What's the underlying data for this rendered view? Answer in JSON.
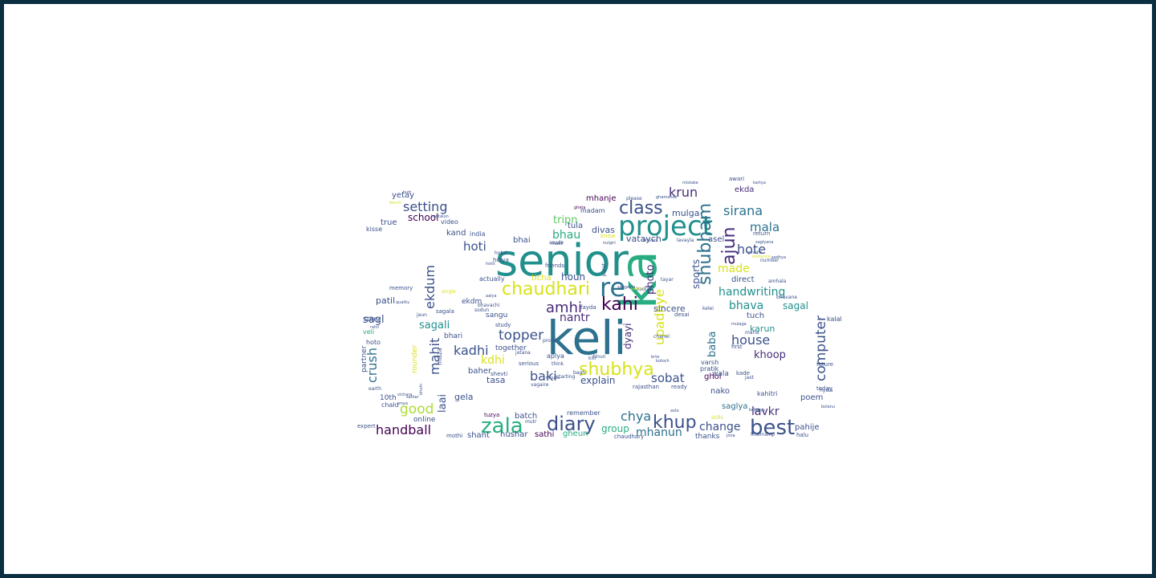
{
  "palette": [
    "#440154",
    "#472c7a",
    "#3b518b",
    "#2c718e",
    "#21908d",
    "#27ad81",
    "#5cc863",
    "#aadc32",
    "#d8e219"
  ],
  "word_cloud": {
    "words": [
      {
        "text": "senior",
        "weight": 1.0,
        "color": "#21908d"
      },
      {
        "text": "keli",
        "weight": 0.93,
        "color": "#2c718e"
      },
      {
        "text": "ka",
        "weight": 0.84,
        "color": "#27ad81"
      },
      {
        "text": "project",
        "weight": 0.55,
        "color": "#21908d"
      },
      {
        "text": "re",
        "weight": 0.46,
        "color": "#2c718e"
      },
      {
        "text": "zala",
        "weight": 0.35,
        "color": "#27ad81"
      },
      {
        "text": "chaudhari",
        "weight": 0.34,
        "color": "#d8e219"
      },
      {
        "text": "shubhya",
        "weight": 0.34,
        "color": "#d8e219"
      },
      {
        "text": "best",
        "weight": 0.34,
        "color": "#3b518b"
      },
      {
        "text": "kahi",
        "weight": 0.32,
        "color": "#440154"
      },
      {
        "text": "class",
        "weight": 0.31,
        "color": "#3b518b"
      },
      {
        "text": "diary",
        "weight": 0.31,
        "color": "#3b518b"
      },
      {
        "text": "shubham",
        "weight": 0.3,
        "color": "#2c718e"
      },
      {
        "text": "ajun",
        "weight": 0.29,
        "color": "#472c7a"
      },
      {
        "text": "khup",
        "weight": 0.29,
        "color": "#3b518b"
      },
      {
        "text": "handball",
        "weight": 0.26,
        "color": "#440154"
      },
      {
        "text": "setting",
        "weight": 0.25,
        "color": "#3b518b"
      },
      {
        "text": "amhi",
        "weight": 0.25,
        "color": "#472c7a"
      },
      {
        "text": "topper",
        "weight": 0.25,
        "color": "#3b518b"
      },
      {
        "text": "ekdum",
        "weight": 0.25,
        "color": "#3b518b"
      },
      {
        "text": "mahit",
        "weight": 0.24,
        "color": "#3b518b"
      },
      {
        "text": "crush",
        "weight": 0.24,
        "color": "#2c718e"
      },
      {
        "text": "computer",
        "weight": 0.24,
        "color": "#3b518b"
      },
      {
        "text": "hote",
        "weight": 0.24,
        "color": "#3b518b"
      },
      {
        "text": "upadhye",
        "weight": 0.23,
        "color": "#d8e219"
      },
      {
        "text": "house",
        "weight": 0.23,
        "color": "#3b518b"
      },
      {
        "text": "sirana",
        "weight": 0.23,
        "color": "#2c718e"
      },
      {
        "text": "chya",
        "weight": 0.23,
        "color": "#2c718e"
      },
      {
        "text": "good",
        "weight": 0.22,
        "color": "#aadc32"
      },
      {
        "text": "kadhi",
        "weight": 0.22,
        "color": "#3b518b"
      },
      {
        "text": "krun",
        "weight": 0.22,
        "color": "#472c7a"
      },
      {
        "text": "baki",
        "weight": 0.22,
        "color": "#3b518b"
      },
      {
        "text": "handwriting",
        "weight": 0.21,
        "color": "#21908d"
      },
      {
        "text": "hoti",
        "weight": 0.21,
        "color": "#3b518b"
      },
      {
        "text": "mala",
        "weight": 0.21,
        "color": "#2c718e"
      },
      {
        "text": "sobat",
        "weight": 0.21,
        "color": "#3b518b"
      },
      {
        "text": "bhava",
        "weight": 0.21,
        "color": "#21908d"
      },
      {
        "text": "mhanun",
        "weight": 0.21,
        "color": "#2c718e"
      },
      {
        "text": "change",
        "weight": 0.21,
        "color": "#3b518b"
      },
      {
        "text": "lavkr",
        "weight": 0.21,
        "color": "#472c7a"
      },
      {
        "text": "nantr",
        "weight": 0.2,
        "color": "#472c7a"
      },
      {
        "text": "made",
        "weight": 0.2,
        "color": "#d8e219"
      },
      {
        "text": "baba",
        "weight": 0.2,
        "color": "#2c718e"
      },
      {
        "text": "photo",
        "weight": 0.2,
        "color": "#472c7a"
      },
      {
        "text": "bhau",
        "weight": 0.19,
        "color": "#27ad81"
      },
      {
        "text": "kdhi",
        "weight": 0.19,
        "color": "#d8e219"
      },
      {
        "text": "khoop",
        "weight": 0.18,
        "color": "#472c7a"
      },
      {
        "text": "sagali",
        "weight": 0.18,
        "color": "#21908d"
      },
      {
        "text": "tripn",
        "weight": 0.18,
        "color": "#5cc863"
      },
      {
        "text": "sports",
        "weight": 0.18,
        "color": "#3b518b"
      },
      {
        "text": "laai",
        "weight": 0.18,
        "color": "#3b518b"
      },
      {
        "text": "school",
        "weight": 0.17,
        "color": "#440154"
      },
      {
        "text": "sagl",
        "weight": 0.16,
        "color": "#3b518b"
      },
      {
        "text": "sagal",
        "weight": 0.16,
        "color": "#21908d"
      },
      {
        "text": "group",
        "weight": 0.16,
        "color": "#27ad81"
      },
      {
        "text": "explain",
        "weight": 0.16,
        "color": "#3b518b"
      },
      {
        "text": "houn",
        "weight": 0.16,
        "color": "#3b518b"
      },
      {
        "text": "dyayi",
        "weight": 0.16,
        "color": "#472c7a"
      },
      {
        "text": "karun",
        "weight": 0.15,
        "color": "#21908d"
      },
      {
        "text": "sincere",
        "weight": 0.15,
        "color": "#3b518b"
      },
      {
        "text": "vataych",
        "weight": 0.14,
        "color": "#3b518b"
      },
      {
        "text": "divas",
        "weight": 0.14,
        "color": "#3b518b"
      },
      {
        "text": "mulga",
        "weight": 0.14,
        "color": "#3b518b"
      },
      {
        "text": "patil",
        "weight": 0.14,
        "color": "#3b518b"
      },
      {
        "text": "tasa",
        "weight": 0.14,
        "color": "#3b518b"
      },
      {
        "text": "gela",
        "weight": 0.14,
        "color": "#3b518b"
      },
      {
        "text": "shant",
        "weight": 0.13,
        "color": "#3b518b"
      },
      {
        "text": "sathi",
        "weight": 0.13,
        "color": "#440154"
      },
      {
        "text": "hushar",
        "weight": 0.13,
        "color": "#3b518b"
      },
      {
        "text": "gheun",
        "weight": 0.13,
        "color": "#27ad81"
      },
      {
        "text": "saglya",
        "weight": 0.13,
        "color": "#2c718e"
      },
      {
        "text": "pahije",
        "weight": 0.13,
        "color": "#3b518b"
      },
      {
        "text": "yetay",
        "weight": 0.13,
        "color": "#3b518b"
      },
      {
        "text": "true",
        "weight": 0.12,
        "color": "#3b518b"
      },
      {
        "text": "kand",
        "weight": 0.12,
        "color": "#3b518b"
      },
      {
        "text": "bhai",
        "weight": 0.12,
        "color": "#3b518b"
      },
      {
        "text": "tula",
        "weight": 0.12,
        "color": "#3b518b"
      },
      {
        "text": "mhanje",
        "weight": 0.12,
        "color": "#440154"
      },
      {
        "text": "ekda",
        "weight": 0.12,
        "color": "#472c7a"
      },
      {
        "text": "asel",
        "weight": 0.12,
        "color": "#3b518b"
      },
      {
        "text": "ticha",
        "weight": 0.12,
        "color": "#d8e219"
      },
      {
        "text": "direct",
        "weight": 0.12,
        "color": "#3b518b"
      },
      {
        "text": "tuch",
        "weight": 0.12,
        "color": "#3b518b"
      },
      {
        "text": "ghol",
        "weight": 0.12,
        "color": "#440154"
      },
      {
        "text": "nako",
        "weight": 0.12,
        "color": "#3b518b"
      },
      {
        "text": "poem",
        "weight": 0.12,
        "color": "#3b518b"
      },
      {
        "text": "batch",
        "weight": 0.12,
        "color": "#3b518b"
      },
      {
        "text": "baher",
        "weight": 0.12,
        "color": "#3b518b"
      },
      {
        "text": "rounder",
        "weight": 0.12,
        "color": "#d8e219"
      },
      {
        "text": "partner",
        "weight": 0.12,
        "color": "#3b518b"
      },
      {
        "text": "10th",
        "weight": 0.12,
        "color": "#3b518b"
      },
      {
        "text": "together",
        "weight": 0.12,
        "color": "#3b518b"
      },
      {
        "text": "bhari",
        "weight": 0.12,
        "color": "#3b518b"
      },
      {
        "text": "sangu",
        "weight": 0.12,
        "color": "#3b518b"
      },
      {
        "text": "ekdm",
        "weight": 0.12,
        "color": "#3b518b"
      },
      {
        "text": "online",
        "weight": 0.11,
        "color": "#3b518b"
      },
      {
        "text": "thanks",
        "weight": 0.11,
        "color": "#3b518b"
      },
      {
        "text": "wala",
        "weight": 0.11,
        "color": "#3b518b"
      },
      {
        "text": "video",
        "weight": 0.1,
        "color": "#3b518b"
      },
      {
        "text": "india",
        "weight": 0.1,
        "color": "#3b518b"
      },
      {
        "text": "kahitri",
        "weight": 0.1,
        "color": "#3b518b"
      },
      {
        "text": "veli",
        "weight": 0.1,
        "color": "#27ad81"
      },
      {
        "text": "hoto",
        "weight": 0.1,
        "color": "#3b518b"
      },
      {
        "text": "story",
        "weight": 0.09,
        "color": "#3b518b"
      },
      {
        "text": "chalu",
        "weight": 0.09,
        "color": "#3b518b"
      },
      {
        "text": "kisse",
        "weight": 0.09,
        "color": "#3b518b"
      },
      {
        "text": "kalal",
        "weight": 0.09,
        "color": "#3b518b"
      },
      {
        "text": "remember",
        "weight": 0.09,
        "color": "#3b518b"
      },
      {
        "text": "madam",
        "weight": 0.09,
        "color": "#3b518b"
      },
      {
        "text": "varsh",
        "weight": 0.09,
        "color": "#3b518b"
      },
      {
        "text": "pratik",
        "weight": 0.09,
        "color": "#3b518b"
      },
      {
        "text": "maza",
        "weight": 0.09,
        "color": "#3b518b"
      },
      {
        "text": "aplya",
        "weight": 0.09,
        "color": "#3b518b"
      },
      {
        "text": "actually",
        "weight": 0.09,
        "color": "#3b518b"
      },
      {
        "text": "tuzya",
        "weight": 0.09,
        "color": "#440154"
      },
      {
        "text": "expert",
        "weight": 0.09,
        "color": "#3b518b"
      },
      {
        "text": "halu",
        "weight": 0.09,
        "color": "#3b518b"
      },
      {
        "text": "future",
        "weight": 0.09,
        "color": "#3b518b"
      },
      {
        "text": "today",
        "weight": 0.09,
        "color": "#3b518b"
      },
      {
        "text": "rajasthan",
        "weight": 0.09,
        "color": "#3b518b"
      },
      {
        "text": "serious",
        "weight": 0.09,
        "color": "#3b518b"
      },
      {
        "text": "study",
        "weight": 0.09,
        "color": "#3b518b"
      },
      {
        "text": "shevti",
        "weight": 0.09,
        "color": "#3b518b"
      },
      {
        "text": "kade",
        "weight": 0.08,
        "color": "#3b518b"
      },
      {
        "text": "first",
        "weight": 0.08,
        "color": "#3b518b"
      },
      {
        "text": "hotya",
        "weight": 0.08,
        "color": "#3b518b"
      },
      {
        "text": "friends",
        "weight": 0.08,
        "color": "#3b518b"
      },
      {
        "text": "know",
        "weight": 0.08,
        "color": "#d8e219"
      },
      {
        "text": "memory",
        "weight": 0.08,
        "color": "#3b518b"
      },
      {
        "text": "fayda",
        "weight": 0.08,
        "color": "#3b518b"
      },
      {
        "text": "desai",
        "weight": 0.08,
        "color": "#3b518b"
      },
      {
        "text": "mothi",
        "weight": 0.08,
        "color": "#3b518b"
      },
      {
        "text": "chaudhary",
        "weight": 0.08,
        "color": "#3b518b"
      },
      {
        "text": "ready",
        "weight": 0.08,
        "color": "#3b518b"
      },
      {
        "text": "sagala",
        "weight": 0.08,
        "color": "#3b518b"
      },
      {
        "text": "awari",
        "weight": 0.08,
        "color": "#3b518b"
      },
      {
        "text": "return",
        "weight": 0.07,
        "color": "#3b518b"
      },
      {
        "text": "number",
        "weight": 0.07,
        "color": "#3b518b"
      },
      {
        "text": "mast",
        "weight": 0.07,
        "color": "#3b518b"
      },
      {
        "text": "please",
        "weight": 0.07,
        "color": "#3b518b"
      },
      {
        "text": "single",
        "weight": 0.07,
        "color": "#d8e219"
      },
      {
        "text": "jaun",
        "weight": 0.07,
        "color": "#3b518b"
      },
      {
        "text": "internship",
        "weight": 0.07,
        "color": "#3b518b"
      },
      {
        "text": "hyala",
        "weight": 0.07,
        "color": "#3b518b"
      },
      {
        "text": "starting",
        "weight": 0.07,
        "color": "#3b518b"
      },
      {
        "text": "earth",
        "weight": 0.07,
        "color": "#3b518b"
      },
      {
        "text": "bhavane",
        "weight": 0.07,
        "color": "#3b518b"
      },
      {
        "text": "amhala",
        "weight": 0.07,
        "color": "#3b518b"
      },
      {
        "text": "bhavachi",
        "weight": 0.07,
        "color": "#3b518b"
      },
      {
        "text": "sodun",
        "weight": 0.07,
        "color": "#3b518b"
      },
      {
        "text": "jane",
        "weight": 0.07,
        "color": "#3b518b"
      },
      {
        "text": "vagaire",
        "weight": 0.07,
        "color": "#3b518b"
      },
      {
        "text": "kiti",
        "weight": 0.07,
        "color": "#3b518b"
      },
      {
        "text": "kadun",
        "weight": 0.07,
        "color": "#3b518b"
      },
      {
        "text": "asude",
        "weight": 0.07,
        "color": "#3b518b"
      },
      {
        "text": "hotat",
        "weight": 0.06,
        "color": "#3b518b"
      },
      {
        "text": "kelei",
        "weight": 0.06,
        "color": "#3b518b"
      },
      {
        "text": "maria",
        "weight": 0.06,
        "color": "#3b518b"
      },
      {
        "text": "jast",
        "weight": 0.06,
        "color": "#3b518b"
      },
      {
        "text": "think",
        "weight": 0.06,
        "color": "#3b518b"
      },
      {
        "text": "jatana",
        "weight": 0.06,
        "color": "#3b518b"
      },
      {
        "text": "parat",
        "weight": 0.06,
        "color": "#3b518b"
      },
      {
        "text": "lavayla",
        "weight": 0.06,
        "color": "#3b518b"
      },
      {
        "text": "chanel",
        "weight": 0.06,
        "color": "#3b518b"
      },
      {
        "text": "tayar",
        "weight": 0.06,
        "color": "#3b518b"
      },
      {
        "text": "mutr",
        "weight": 0.06,
        "color": "#3b518b"
      },
      {
        "text": "tinun",
        "weight": 0.06,
        "color": "#3b518b"
      },
      {
        "text": "bagh",
        "weight": 0.06,
        "color": "#3b518b"
      },
      {
        "text": "proud",
        "weight": 0.06,
        "color": "#3b518b"
      },
      {
        "text": "skills",
        "weight": 0.06,
        "color": "#d8e219"
      },
      {
        "text": "quality",
        "weight": 0.06,
        "color": "#3b518b"
      },
      {
        "text": "rahil",
        "weight": 0.06,
        "color": "#3b518b"
      },
      {
        "text": "bench",
        "weight": 0.06,
        "color": "#d8e219"
      },
      {
        "text": "gheta",
        "weight": 0.06,
        "color": "#440154"
      },
      {
        "text": "ghamands",
        "weight": 0.06,
        "color": "#3b518b"
      },
      {
        "text": "kantalun",
        "weight": 0.06,
        "color": "#3b518b"
      },
      {
        "text": "aalya",
        "weight": 0.06,
        "color": "#3b518b"
      },
      {
        "text": "hutt",
        "weight": 0.05,
        "color": "#3b518b"
      },
      {
        "text": "mulaga",
        "weight": 0.05,
        "color": "#3b518b"
      },
      {
        "text": "kelela",
        "weight": 0.05,
        "color": "#3b518b"
      },
      {
        "text": "hotit",
        "weight": 0.05,
        "color": "#3b518b"
      },
      {
        "text": "bhivani",
        "weight": 0.05,
        "color": "#3b518b"
      },
      {
        "text": "kaisty",
        "weight": 0.05,
        "color": "#d8e219"
      },
      {
        "text": "jmla",
        "weight": 0.05,
        "color": "#3b518b"
      },
      {
        "text": "mhubu",
        "weight": 0.05,
        "color": "#3b518b"
      },
      {
        "text": "bhuhi",
        "weight": 0.05,
        "color": "#3b518b"
      },
      {
        "text": "asto",
        "weight": 0.05,
        "color": "#3b518b"
      },
      {
        "text": "vichara",
        "weight": 0.05,
        "color": "#3b518b"
      },
      {
        "text": "amya",
        "weight": 0.05,
        "color": "#3b518b"
      },
      {
        "text": "sarkar",
        "weight": 0.05,
        "color": "#3b518b"
      },
      {
        "text": "sadhya",
        "weight": 0.05,
        "color": "#3b518b"
      },
      {
        "text": "saglyana",
        "weight": 0.05,
        "color": "#3b518b"
      },
      {
        "text": "kartya",
        "weight": 0.05,
        "color": "#3b518b"
      },
      {
        "text": "bolanu",
        "weight": 0.05,
        "color": "#3b518b"
      },
      {
        "text": "gavcha",
        "weight": 0.05,
        "color": "#3b518b"
      },
      {
        "text": "evidence",
        "weight": 0.05,
        "color": "#d8e219"
      },
      {
        "text": "mistake",
        "weight": 0.05,
        "color": "#3b518b"
      },
      {
        "text": "sangayla",
        "weight": 0.05,
        "color": "#3b518b"
      },
      {
        "text": "nulgiri",
        "weight": 0.05,
        "color": "#3b518b"
      },
      {
        "text": "brte",
        "weight": 0.05,
        "color": "#3b518b"
      },
      {
        "text": "kotoch",
        "weight": 0.05,
        "color": "#3b518b"
      },
      {
        "text": "jatay",
        "weight": 0.05,
        "color": "#3b518b"
      },
      {
        "text": "zhile",
        "weight": 0.05,
        "color": "#d8e219"
      },
      {
        "text": "bhetle",
        "weight": 0.05,
        "color": "#3b518b"
      },
      {
        "text": "dayla",
        "weight": 0.05,
        "color": "#3b518b"
      },
      {
        "text": "suck",
        "weight": 0.05,
        "color": "#3b518b"
      },
      {
        "text": "mach",
        "weight": 0.05,
        "color": "#3b518b"
      },
      {
        "text": "jhale",
        "weight": 0.05,
        "color": "#3b518b"
      },
      {
        "text": "aiya",
        "weight": 0.05,
        "color": "#3b518b"
      },
      {
        "text": "mahi",
        "weight": 0.05,
        "color": "#3b518b"
      },
      {
        "text": "sim",
        "weight": 0.05,
        "color": "#3b518b"
      }
    ]
  }
}
